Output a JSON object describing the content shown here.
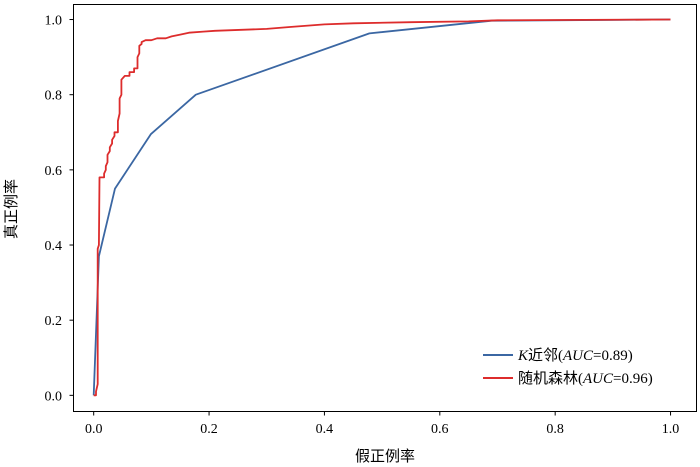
{
  "chart_data": {
    "type": "line",
    "xlabel": "假正例率",
    "ylabel": "真正例率",
    "xlim": [
      -0.035,
      1.045
    ],
    "ylim": [
      -0.043,
      1.04
    ],
    "xticks": [
      "0.0",
      "0.2",
      "0.4",
      "0.6",
      "0.8",
      "1.0"
    ],
    "yticks": [
      "0.0",
      "0.2",
      "0.4",
      "0.6",
      "0.8",
      "1.0"
    ],
    "grid": false,
    "legend": "lower-right",
    "series": [
      {
        "name": "K近邻(AUC=0.89)",
        "color": "#3b67a3",
        "points": [
          [
            0,
            0
          ],
          [
            0.009,
            0.37
          ],
          [
            0.037,
            0.55
          ],
          [
            0.099,
            0.695
          ],
          [
            0.177,
            0.8
          ],
          [
            0.478,
            0.963
          ],
          [
            0.69,
            0.997
          ],
          [
            1.0,
            1.0
          ]
        ]
      },
      {
        "name": "随机森林(AUC=0.96)",
        "color": "#dd2c2c",
        "points": [
          [
            0,
            0
          ],
          [
            0.004,
            0
          ],
          [
            0.004,
            0.01
          ],
          [
            0.007,
            0.03
          ],
          [
            0.007,
            0.39
          ],
          [
            0.009,
            0.4
          ],
          [
            0.01,
            0.58
          ],
          [
            0.018,
            0.58
          ],
          [
            0.018,
            0.59
          ],
          [
            0.021,
            0.6
          ],
          [
            0.021,
            0.61
          ],
          [
            0.024,
            0.62
          ],
          [
            0.024,
            0.64
          ],
          [
            0.028,
            0.65
          ],
          [
            0.028,
            0.66
          ],
          [
            0.032,
            0.67
          ],
          [
            0.032,
            0.68
          ],
          [
            0.036,
            0.69
          ],
          [
            0.036,
            0.7
          ],
          [
            0.042,
            0.7
          ],
          [
            0.042,
            0.73
          ],
          [
            0.045,
            0.75
          ],
          [
            0.045,
            0.79
          ],
          [
            0.048,
            0.8
          ],
          [
            0.048,
            0.84
          ],
          [
            0.054,
            0.85
          ],
          [
            0.062,
            0.85
          ],
          [
            0.062,
            0.86
          ],
          [
            0.07,
            0.86
          ],
          [
            0.07,
            0.87
          ],
          [
            0.076,
            0.87
          ],
          [
            0.076,
            0.9
          ],
          [
            0.079,
            0.91
          ],
          [
            0.079,
            0.93
          ],
          [
            0.083,
            0.935
          ],
          [
            0.083,
            0.94
          ],
          [
            0.09,
            0.945
          ],
          [
            0.1,
            0.945
          ],
          [
            0.11,
            0.95
          ],
          [
            0.125,
            0.95
          ],
          [
            0.135,
            0.955
          ],
          [
            0.15,
            0.96
          ],
          [
            0.165,
            0.965
          ],
          [
            0.19,
            0.968
          ],
          [
            0.21,
            0.97
          ],
          [
            0.3,
            0.975
          ],
          [
            0.34,
            0.98
          ],
          [
            0.4,
            0.987
          ],
          [
            0.45,
            0.99
          ],
          [
            0.55,
            0.993
          ],
          [
            0.65,
            0.995
          ],
          [
            0.7,
            0.998
          ],
          [
            1.0,
            1.0
          ]
        ]
      }
    ]
  }
}
